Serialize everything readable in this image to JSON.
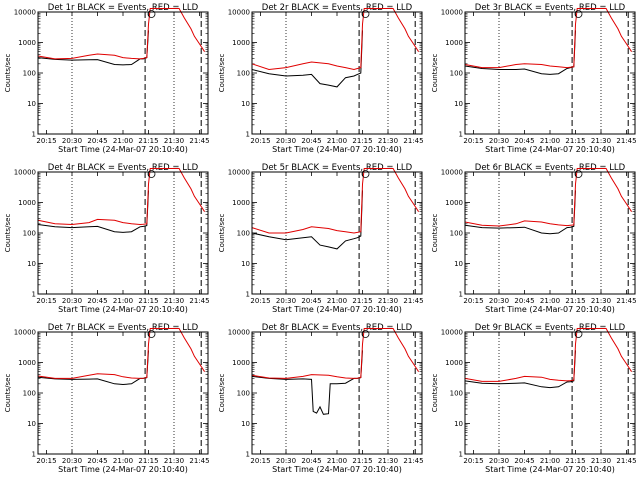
{
  "chart_data": [
    {
      "type": "line",
      "title": "Det 1r BLACK = Events, RED = LLD",
      "xlabel": "Start Time (24-Mar-07 20:10:40)",
      "ylabel": "Counts/sec",
      "yscale": "log",
      "ylim": [
        1,
        10000
      ],
      "xlim": [
        "20:10",
        "21:50"
      ],
      "yticks": [
        "1",
        "10",
        "100",
        "1000",
        "10000"
      ],
      "xticks": [
        "20:15",
        "20:30",
        "20:45",
        "21:00",
        "21:15",
        "21:30",
        "21:45"
      ],
      "dotted_lines_x": [
        "20:30",
        "21:30"
      ],
      "dashed_lines_x": [
        "21:13",
        "21:46"
      ],
      "series": [
        {
          "name": "Events",
          "color": "#000000",
          "x": [
            "20:10",
            "20:20",
            "20:30",
            "20:40",
            "20:45",
            "20:55",
            "21:00",
            "21:05",
            "21:10",
            "21:12",
            "21:14",
            "21:15"
          ],
          "y": [
            320,
            280,
            265,
            270,
            275,
            190,
            185,
            190,
            290,
            290,
            320,
            2500
          ]
        },
        {
          "name": "LLD",
          "color": "#e00000",
          "x": [
            "20:10",
            "20:20",
            "20:30",
            "20:40",
            "20:45",
            "20:55",
            "21:00",
            "21:05",
            "21:10",
            "21:12",
            "21:14",
            "21:15",
            "21:16",
            "21:33",
            "21:36",
            "21:40",
            "21:42",
            "21:45",
            "21:48"
          ],
          "y": [
            360,
            290,
            300,
            380,
            420,
            380,
            320,
            300,
            290,
            300,
            320,
            4000,
            13000,
            13000,
            6500,
            2800,
            1600,
            900,
            500
          ]
        }
      ]
    },
    {
      "type": "line",
      "title": "Det 2r BLACK = Events, RED = LLD",
      "xlabel": "Start Time (24-Mar-07 20:10:40)",
      "ylabel": "Counts/sec",
      "yscale": "log",
      "ylim": [
        1,
        10000
      ],
      "xlim": [
        "20:10",
        "21:50"
      ],
      "yticks": [
        "1",
        "10",
        "100",
        "1000",
        "10000"
      ],
      "xticks": [
        "20:15",
        "20:30",
        "20:45",
        "21:00",
        "21:15",
        "21:30",
        "21:45"
      ],
      "dotted_lines_x": [
        "20:30",
        "21:30"
      ],
      "dashed_lines_x": [
        "21:13",
        "21:46"
      ],
      "series": [
        {
          "name": "Events",
          "color": "#000000",
          "x": [
            "20:10",
            "20:20",
            "20:30",
            "20:40",
            "20:45",
            "20:50",
            "20:55",
            "21:00",
            "21:05",
            "21:10",
            "21:12",
            "21:14",
            "21:15"
          ],
          "y": [
            130,
            95,
            80,
            85,
            90,
            45,
            40,
            35,
            70,
            80,
            90,
            100,
            2500
          ]
        },
        {
          "name": "LLD",
          "color": "#e00000",
          "x": [
            "20:10",
            "20:20",
            "20:30",
            "20:40",
            "20:45",
            "20:55",
            "21:00",
            "21:05",
            "21:10",
            "21:12",
            "21:14",
            "21:15",
            "21:16",
            "21:33",
            "21:36",
            "21:40",
            "21:42",
            "21:45",
            "21:48"
          ],
          "y": [
            200,
            130,
            150,
            200,
            230,
            200,
            170,
            150,
            130,
            140,
            150,
            4000,
            13000,
            13000,
            6500,
            2800,
            1600,
            900,
            500
          ]
        }
      ]
    },
    {
      "type": "line",
      "title": "Det 3r BLACK = Events, RED = LLD",
      "xlabel": "Start Time (24-Mar-07 20:10:40)",
      "ylabel": "Counts/sec",
      "yscale": "log",
      "ylim": [
        1,
        10000
      ],
      "xlim": [
        "20:10",
        "21:50"
      ],
      "yticks": [
        "1",
        "10",
        "100",
        "1000",
        "10000"
      ],
      "xticks": [
        "20:15",
        "20:30",
        "20:45",
        "21:00",
        "21:15",
        "21:30",
        "21:45"
      ],
      "dotted_lines_x": [
        "20:30",
        "21:30"
      ],
      "dashed_lines_x": [
        "21:13",
        "21:46"
      ],
      "series": [
        {
          "name": "Events",
          "color": "#000000",
          "x": [
            "20:10",
            "20:20",
            "20:30",
            "20:40",
            "20:45",
            "20:55",
            "21:00",
            "21:05",
            "21:10",
            "21:12",
            "21:14",
            "21:15"
          ],
          "y": [
            170,
            140,
            130,
            130,
            135,
            95,
            90,
            95,
            140,
            150,
            160,
            2500
          ]
        },
        {
          "name": "LLD",
          "color": "#e00000",
          "x": [
            "20:10",
            "20:20",
            "20:30",
            "20:40",
            "20:45",
            "20:55",
            "21:00",
            "21:05",
            "21:10",
            "21:12",
            "21:14",
            "21:15",
            "21:16",
            "21:33",
            "21:36",
            "21:40",
            "21:42",
            "21:45",
            "21:48"
          ],
          "y": [
            190,
            150,
            150,
            190,
            200,
            190,
            170,
            160,
            150,
            155,
            160,
            4000,
            13000,
            13000,
            6500,
            2800,
            1600,
            900,
            500
          ]
        }
      ]
    },
    {
      "type": "line",
      "title": "Det 4r BLACK = Events, RED = LLD",
      "xlabel": "Start Time (24-Mar-07 20:10:40)",
      "ylabel": "Counts/sec",
      "yscale": "log",
      "ylim": [
        1,
        10000
      ],
      "xlim": [
        "20:10",
        "21:50"
      ],
      "yticks": [
        "1",
        "10",
        "100",
        "1000",
        "10000"
      ],
      "xticks": [
        "20:15",
        "20:30",
        "20:45",
        "21:00",
        "21:15",
        "21:30",
        "21:45"
      ],
      "dotted_lines_x": [
        "20:30",
        "21:30"
      ],
      "dashed_lines_x": [
        "21:13",
        "21:46"
      ],
      "series": [
        {
          "name": "Events",
          "color": "#000000",
          "x": [
            "20:10",
            "20:20",
            "20:30",
            "20:40",
            "20:45",
            "20:55",
            "21:00",
            "21:05",
            "21:10",
            "21:12",
            "21:14",
            "21:15"
          ],
          "y": [
            190,
            160,
            150,
            160,
            165,
            110,
            105,
            110,
            160,
            165,
            175,
            2500
          ]
        },
        {
          "name": "LLD",
          "color": "#e00000",
          "x": [
            "20:10",
            "20:20",
            "20:30",
            "20:40",
            "20:45",
            "20:55",
            "21:00",
            "21:05",
            "21:10",
            "21:12",
            "21:14",
            "21:15",
            "21:16",
            "21:33",
            "21:36",
            "21:40",
            "21:42",
            "21:45",
            "21:48"
          ],
          "y": [
            260,
            200,
            190,
            220,
            280,
            260,
            220,
            200,
            190,
            195,
            200,
            4000,
            13000,
            13000,
            6500,
            2800,
            1600,
            900,
            500
          ]
        }
      ]
    },
    {
      "type": "line",
      "title": "Det 5r BLACK = Events, RED = LLD",
      "xlabel": "Start Time (24-Mar-07 20:10:40)",
      "ylabel": "Counts/sec",
      "yscale": "log",
      "ylim": [
        1,
        10000
      ],
      "xlim": [
        "20:10",
        "21:50"
      ],
      "yticks": [
        "1",
        "10",
        "100",
        "1000",
        "10000"
      ],
      "xticks": [
        "20:15",
        "20:30",
        "20:45",
        "21:00",
        "21:15",
        "21:30",
        "21:45"
      ],
      "dotted_lines_x": [
        "20:30",
        "21:30"
      ],
      "dashed_lines_x": [
        "21:13",
        "21:46"
      ],
      "series": [
        {
          "name": "Events",
          "color": "#000000",
          "x": [
            "20:10",
            "20:20",
            "20:30",
            "20:40",
            "20:45",
            "20:50",
            "20:55",
            "21:00",
            "21:05",
            "21:10",
            "21:12",
            "21:14",
            "21:15"
          ],
          "y": [
            100,
            75,
            60,
            70,
            75,
            40,
            35,
            30,
            55,
            65,
            70,
            80,
            2500
          ]
        },
        {
          "name": "LLD",
          "color": "#e00000",
          "x": [
            "20:10",
            "20:20",
            "20:30",
            "20:40",
            "20:45",
            "20:55",
            "21:00",
            "21:05",
            "21:10",
            "21:12",
            "21:14",
            "21:15",
            "21:16",
            "21:33",
            "21:36",
            "21:40",
            "21:42",
            "21:45",
            "21:48"
          ],
          "y": [
            150,
            100,
            100,
            130,
            160,
            140,
            120,
            110,
            100,
            105,
            110,
            4000,
            13000,
            13000,
            6500,
            2800,
            1600,
            900,
            500
          ]
        }
      ]
    },
    {
      "type": "line",
      "title": "Det 6r BLACK = Events, RED = LLD",
      "xlabel": "Start Time (24-Mar-07 20:10:40)",
      "ylabel": "Counts/sec",
      "yscale": "log",
      "ylim": [
        1,
        10000
      ],
      "xlim": [
        "20:10",
        "21:50"
      ],
      "yticks": [
        "1",
        "10",
        "100",
        "1000",
        "10000"
      ],
      "xticks": [
        "20:15",
        "20:30",
        "20:45",
        "21:00",
        "21:15",
        "21:30",
        "21:45"
      ],
      "dotted_lines_x": [
        "20:30",
        "21:30"
      ],
      "dashed_lines_x": [
        "21:13",
        "21:46"
      ],
      "series": [
        {
          "name": "Events",
          "color": "#000000",
          "x": [
            "20:10",
            "20:20",
            "20:30",
            "20:40",
            "20:45",
            "20:55",
            "21:00",
            "21:05",
            "21:10",
            "21:12",
            "21:14",
            "21:15"
          ],
          "y": [
            180,
            150,
            145,
            150,
            155,
            100,
            95,
            100,
            150,
            155,
            165,
            2500
          ]
        },
        {
          "name": "LLD",
          "color": "#e00000",
          "x": [
            "20:10",
            "20:20",
            "20:30",
            "20:40",
            "20:45",
            "20:55",
            "21:00",
            "21:05",
            "21:10",
            "21:12",
            "21:14",
            "21:15",
            "21:16",
            "21:33",
            "21:36",
            "21:40",
            "21:42",
            "21:45",
            "21:48"
          ],
          "y": [
            230,
            180,
            170,
            200,
            250,
            230,
            200,
            185,
            175,
            180,
            185,
            4000,
            13000,
            13000,
            6500,
            2800,
            1600,
            900,
            500
          ]
        }
      ]
    },
    {
      "type": "line",
      "title": "Det 7r BLACK = Events, RED = LLD",
      "xlabel": "Start Time (24-Mar-07 20:10:40)",
      "ylabel": "Counts/sec",
      "yscale": "log",
      "ylim": [
        1,
        10000
      ],
      "xlim": [
        "20:10",
        "21:50"
      ],
      "yticks": [
        "1",
        "10",
        "100",
        "1000",
        "10000"
      ],
      "xticks": [
        "20:15",
        "20:30",
        "20:45",
        "21:00",
        "21:15",
        "21:30",
        "21:45"
      ],
      "dotted_lines_x": [
        "20:30",
        "21:30"
      ],
      "dashed_lines_x": [
        "21:13",
        "21:46"
      ],
      "series": [
        {
          "name": "Events",
          "color": "#000000",
          "x": [
            "20:10",
            "20:20",
            "20:30",
            "20:40",
            "20:45",
            "20:55",
            "21:00",
            "21:05",
            "21:10",
            "21:12",
            "21:14",
            "21:15"
          ],
          "y": [
            330,
            290,
            280,
            285,
            290,
            200,
            190,
            200,
            300,
            300,
            320,
            2500
          ]
        },
        {
          "name": "LLD",
          "color": "#e00000",
          "x": [
            "20:10",
            "20:20",
            "20:30",
            "20:40",
            "20:45",
            "20:55",
            "21:00",
            "21:05",
            "21:10",
            "21:12",
            "21:14",
            "21:15",
            "21:16",
            "21:33",
            "21:36",
            "21:40",
            "21:42",
            "21:45",
            "21:48"
          ],
          "y": [
            360,
            300,
            300,
            380,
            430,
            400,
            340,
            310,
            300,
            305,
            320,
            4000,
            13000,
            13000,
            6500,
            2800,
            1600,
            900,
            500
          ]
        }
      ]
    },
    {
      "type": "line",
      "title": "Det 8r BLACK = Events, RED = LLD",
      "xlabel": "Start Time (24-Mar-07 20:10:40)",
      "ylabel": "Counts/sec",
      "yscale": "log",
      "ylim": [
        1,
        10000
      ],
      "xlim": [
        "20:10",
        "21:50"
      ],
      "yticks": [
        "1",
        "10",
        "100",
        "1000",
        "10000"
      ],
      "xticks": [
        "20:15",
        "20:30",
        "20:45",
        "21:00",
        "21:15",
        "21:30",
        "21:45"
      ],
      "dotted_lines_x": [
        "20:30",
        "21:30"
      ],
      "dashed_lines_x": [
        "21:13",
        "21:46"
      ],
      "series": [
        {
          "name": "Events",
          "color": "#000000",
          "x": [
            "20:10",
            "20:20",
            "20:30",
            "20:40",
            "20:45",
            "20:46",
            "20:48",
            "20:50",
            "20:52",
            "20:55",
            "20:56",
            "21:00",
            "21:05",
            "21:10",
            "21:12",
            "21:14",
            "21:15"
          ],
          "y": [
            350,
            300,
            280,
            290,
            280,
            25,
            22,
            35,
            20,
            21,
            200,
            200,
            210,
            300,
            300,
            320,
            2500
          ]
        },
        {
          "name": "LLD",
          "color": "#e00000",
          "x": [
            "20:10",
            "20:20",
            "20:30",
            "20:40",
            "20:45",
            "20:55",
            "21:00",
            "21:05",
            "21:10",
            "21:12",
            "21:14",
            "21:15",
            "21:16",
            "21:33",
            "21:36",
            "21:40",
            "21:42",
            "21:45",
            "21:48"
          ],
          "y": [
            380,
            310,
            300,
            350,
            400,
            380,
            340,
            310,
            300,
            305,
            320,
            4000,
            13000,
            13000,
            6500,
            2800,
            1600,
            900,
            500
          ]
        }
      ]
    },
    {
      "type": "line",
      "title": "Det 9r BLACK = Events, RED = LLD",
      "xlabel": "Start Time (24-Mar-07 20:10:40)",
      "ylabel": "Counts/sec",
      "yscale": "log",
      "ylim": [
        1,
        10000
      ],
      "xlim": [
        "20:10",
        "21:50"
      ],
      "yticks": [
        "1",
        "10",
        "100",
        "1000",
        "10000"
      ],
      "xticks": [
        "20:15",
        "20:30",
        "20:45",
        "21:00",
        "21:15",
        "21:30",
        "21:45"
      ],
      "dotted_lines_x": [
        "20:30",
        "21:30"
      ],
      "dashed_lines_x": [
        "21:13",
        "21:46"
      ],
      "series": [
        {
          "name": "Events",
          "color": "#000000",
          "x": [
            "20:10",
            "20:20",
            "20:30",
            "20:40",
            "20:45",
            "20:55",
            "21:00",
            "21:05",
            "21:10",
            "21:12",
            "21:14",
            "21:15"
          ],
          "y": [
            250,
            210,
            200,
            210,
            215,
            160,
            150,
            160,
            230,
            235,
            250,
            2500
          ]
        },
        {
          "name": "LLD",
          "color": "#e00000",
          "x": [
            "20:10",
            "20:20",
            "20:30",
            "20:40",
            "20:45",
            "20:55",
            "21:00",
            "21:05",
            "21:10",
            "21:12",
            "21:14",
            "21:15",
            "21:16",
            "21:33",
            "21:36",
            "21:40",
            "21:42",
            "21:45",
            "21:48"
          ],
          "y": [
            300,
            240,
            240,
            300,
            350,
            330,
            280,
            260,
            250,
            255,
            265,
            4000,
            13000,
            13000,
            6500,
            2800,
            1600,
            900,
            500
          ]
        }
      ]
    }
  ]
}
